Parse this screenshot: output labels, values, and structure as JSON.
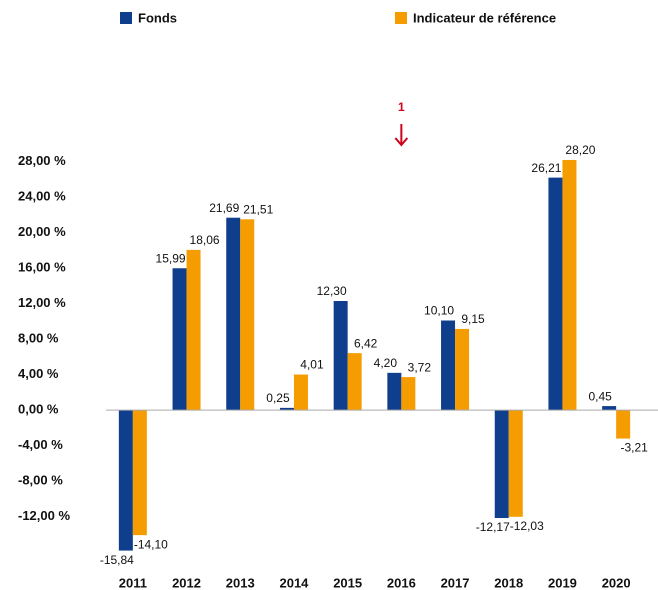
{
  "chart_data": {
    "type": "bar",
    "categories": [
      "2011",
      "2012",
      "2013",
      "2014",
      "2015",
      "2016",
      "2017",
      "2018",
      "2019",
      "2020"
    ],
    "series": [
      {
        "name": "Fonds",
        "color": "#0f3e8c",
        "values": [
          -15.84,
          15.99,
          21.69,
          0.25,
          12.3,
          4.2,
          10.1,
          -12.17,
          26.21,
          0.45
        ],
        "value_labels": [
          "-15,84",
          "15,99",
          "21,69",
          "0,25",
          "12,30",
          "4,20",
          "10,10",
          "-12,17",
          "26,21",
          "0,45"
        ]
      },
      {
        "name": "Indicateur de référence",
        "color": "#f59c00",
        "values": [
          -14.1,
          18.06,
          21.51,
          4.01,
          6.42,
          3.72,
          9.15,
          -12.03,
          28.2,
          -3.21
        ],
        "value_labels": [
          "-14,10",
          "18,06",
          "21,51",
          "4,01",
          "6,42",
          "3,72",
          "9,15",
          "-12,03",
          "28,20",
          "-3,21"
        ]
      }
    ],
    "ylim": [
      -16,
      30
    ],
    "yticks": [
      {
        "value": -12,
        "label": "-12,00 %"
      },
      {
        "value": -8,
        "label": "-8,00 %"
      },
      {
        "value": -4,
        "label": "-4,00 %"
      },
      {
        "value": 0,
        "label": "0,00 %"
      },
      {
        "value": 4,
        "label": "4,00 %"
      },
      {
        "value": 8,
        "label": "8,00 %"
      },
      {
        "value": 12,
        "label": "12,00 %"
      },
      {
        "value": 16,
        "label": "16,00 %"
      },
      {
        "value": 20,
        "label": "20,00 %"
      },
      {
        "value": 24,
        "label": "24,00 %"
      },
      {
        "value": 28,
        "label": "28,00 %"
      }
    ],
    "annotation": {
      "text": "1",
      "category": "2016",
      "color": "#d0021b"
    },
    "grid": false,
    "legend": "top"
  }
}
